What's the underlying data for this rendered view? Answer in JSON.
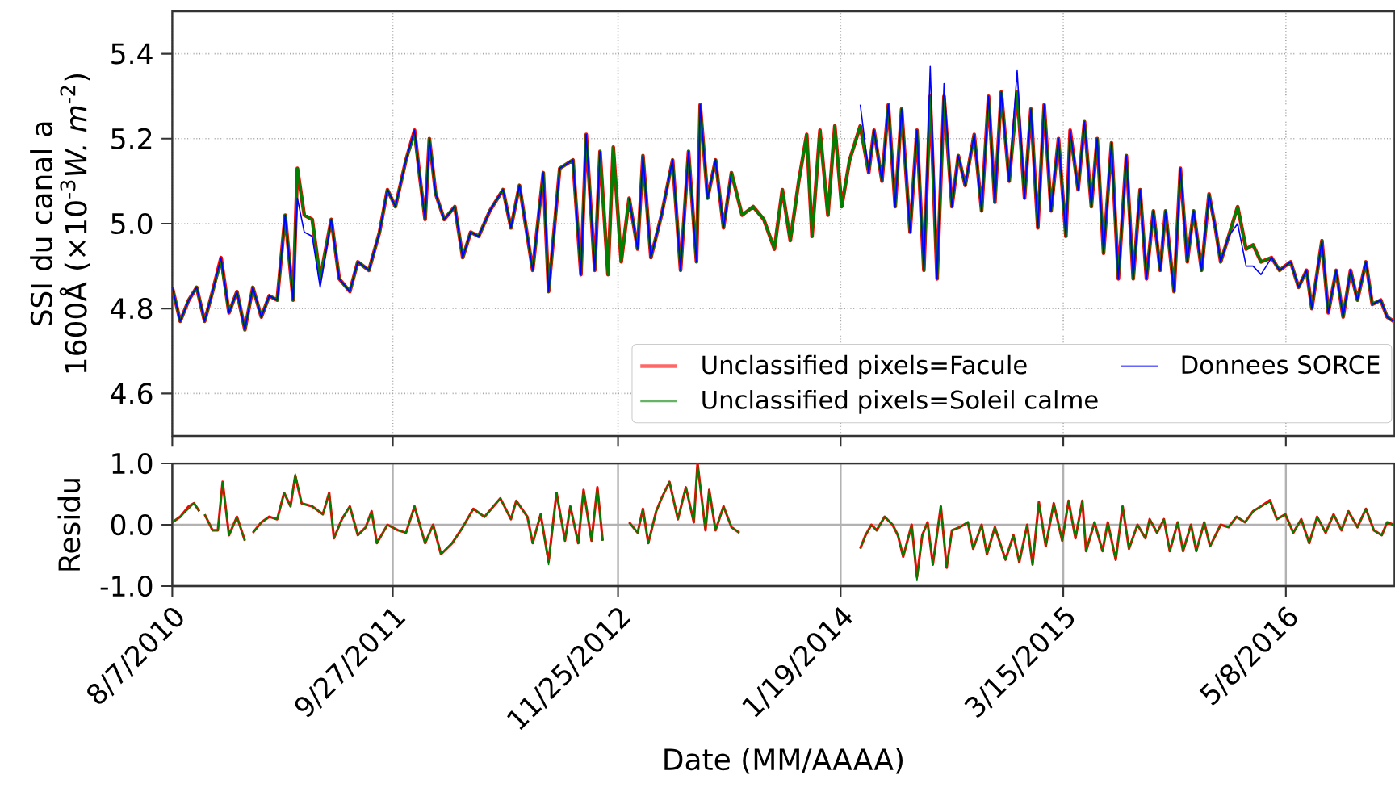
{
  "chart_data": [
    {
      "type": "line",
      "ylabel": "SSI du canal a 1600Å (×10$^{-3}$*W. m*$^{-2}$)",
      "xlim": [
        "2010-08-07",
        "2016-11-29"
      ],
      "ylim": [
        4.5,
        5.5
      ],
      "yticks": [
        {
          "value": 4.6,
          "label": "4.6"
        },
        {
          "value": 4.8,
          "label": "4.8"
        },
        {
          "value": 5.0,
          "label": "5.0"
        },
        {
          "value": 5.2,
          "label": "5.2"
        },
        {
          "value": 5.4,
          "label": "5.4"
        }
      ],
      "xticks": [
        {
          "value": "2010-08-07",
          "label": null
        },
        {
          "value": "2011-09-27",
          "label": null
        },
        {
          "value": "2012-11-25",
          "label": null
        },
        {
          "value": "2014-01-19",
          "label": null
        },
        {
          "value": "2015-03-15",
          "label": null
        },
        {
          "value": "2016-05-08",
          "label": null
        }
      ],
      "tick_labels": "y",
      "grid": true,
      "legend": "bottom right",
      "x": [
        "2010-08-07",
        "2010-08-22",
        "2010-09-07",
        "2010-09-22",
        "2010-10-07",
        "2010-10-22",
        "2010-11-07",
        "2010-11-22",
        "2010-12-07",
        "2010-12-22",
        "2011-01-06",
        "2011-01-22",
        "2011-02-06",
        "2011-02-21",
        "2011-03-08",
        "2011-03-23",
        "2011-03-31",
        "2011-04-13",
        "2011-04-28",
        "2011-05-13",
        "2011-06-03",
        "2011-06-18",
        "2011-07-08",
        "2011-07-23",
        "2011-08-13",
        "2011-09-02",
        "2011-09-17",
        "2011-10-02",
        "2011-10-22",
        "2011-11-07",
        "2011-11-17",
        "2011-11-27",
        "2011-12-05",
        "2011-12-17",
        "2012-01-02",
        "2012-01-22",
        "2012-02-06",
        "2012-02-21",
        "2012-03-07",
        "2012-03-28",
        "2012-04-22",
        "2012-05-07",
        "2012-05-23",
        "2012-06-17",
        "2012-07-07",
        "2012-07-17",
        "2012-08-07",
        "2012-09-01",
        "2012-09-16",
        "2012-09-26",
        "2012-10-12",
        "2012-10-22",
        "2012-11-06",
        "2012-11-16",
        "2012-12-01",
        "2012-12-16",
        "2013-01-01",
        "2013-01-11",
        "2013-01-26",
        "2013-02-15",
        "2013-03-08",
        "2013-03-23",
        "2013-04-07",
        "2013-04-22",
        "2013-04-29",
        "2013-05-13",
        "2013-05-28",
        "2013-06-12",
        "2013-06-27",
        "2013-07-17",
        "2013-08-07",
        "2013-08-27",
        "2013-09-16",
        "2013-10-01",
        "2013-10-16",
        "2013-11-01",
        "2013-11-16",
        "2013-11-26",
        "2013-12-11",
        "2013-12-26",
        "2014-01-08",
        "2014-01-21",
        "2014-02-05",
        "2014-02-25",
        "2014-03-13",
        "2014-03-23",
        "2014-04-07",
        "2014-04-19",
        "2014-05-02",
        "2014-05-14",
        "2014-05-30",
        "2014-06-12",
        "2014-06-25",
        "2014-07-07",
        "2014-07-20",
        "2014-08-02",
        "2014-08-17",
        "2014-08-29",
        "2014-09-11",
        "2014-09-28",
        "2014-10-12",
        "2014-10-25",
        "2014-11-06",
        "2014-11-18",
        "2014-12-03",
        "2014-12-18",
        "2015-01-01",
        "2015-01-13",
        "2015-01-26",
        "2015-02-07",
        "2015-02-20",
        "2015-03-06",
        "2015-03-20",
        "2015-03-28",
        "2015-04-12",
        "2015-04-24",
        "2015-05-07",
        "2015-05-18",
        "2015-05-30",
        "2015-06-14",
        "2015-06-27",
        "2015-07-12",
        "2015-07-25",
        "2015-08-07",
        "2015-08-19",
        "2015-09-01",
        "2015-09-14",
        "2015-09-24",
        "2015-10-10",
        "2015-10-22",
        "2015-11-04",
        "2015-11-16",
        "2015-12-01",
        "2015-12-15",
        "2015-12-27",
        "2016-01-06",
        "2016-01-21",
        "2016-02-07",
        "2016-02-23",
        "2016-03-07",
        "2016-03-22",
        "2016-04-11",
        "2016-04-26",
        "2016-05-17",
        "2016-06-01",
        "2016-06-16",
        "2016-06-26",
        "2016-07-15",
        "2016-07-27",
        "2016-08-11",
        "2016-08-24",
        "2016-09-07",
        "2016-09-20",
        "2016-10-06",
        "2016-10-18",
        "2016-11-03",
        "2016-11-15",
        "2016-11-27"
      ],
      "series": [
        {
          "name": "Unclassified pixels=Facule",
          "color": "#ff0000",
          "values": [
            4.85,
            4.77,
            4.82,
            4.85,
            4.77,
            4.84,
            4.92,
            4.79,
            4.84,
            4.75,
            4.85,
            4.78,
            4.83,
            4.82,
            5.02,
            4.82,
            5.13,
            5.02,
            5.01,
            4.87,
            5.01,
            4.87,
            4.84,
            4.91,
            4.89,
            4.98,
            5.08,
            5.04,
            5.15,
            5.22,
            5.11,
            5.01,
            5.2,
            5.07,
            5.01,
            5.04,
            4.92,
            4.98,
            4.97,
            5.03,
            5.08,
            4.99,
            5.09,
            4.89,
            5.12,
            4.84,
            5.13,
            5.15,
            4.88,
            5.21,
            4.89,
            5.17,
            4.88,
            5.18,
            4.91,
            5.06,
            4.94,
            5.16,
            4.92,
            5.02,
            5.15,
            4.89,
            5.17,
            4.91,
            5.28,
            5.06,
            5.15,
            4.99,
            5.12,
            5.02,
            5.04,
            5.01,
            4.94,
            5.08,
            4.96,
            5.1,
            5.21,
            4.97,
            5.22,
            5.02,
            5.23,
            5.04,
            5.15,
            5.23,
            5.12,
            5.22,
            5.1,
            5.28,
            5.04,
            5.27,
            4.98,
            5.22,
            4.89,
            5.3,
            4.87,
            5.3,
            5.04,
            5.16,
            5.09,
            5.21,
            5.03,
            5.3,
            5.05,
            5.31,
            5.1,
            5.31,
            5.06,
            5.27,
            4.99,
            5.28,
            5.03,
            5.2,
            4.97,
            5.22,
            5.08,
            5.24,
            5.04,
            5.2,
            4.93,
            5.19,
            4.87,
            5.16,
            4.87,
            5.08,
            4.87,
            5.03,
            4.89,
            5.03,
            4.84,
            5.13,
            4.91,
            5.03,
            4.89,
            5.07,
            4.99,
            4.91,
            4.97,
            5.04,
            4.94,
            4.95,
            4.91,
            4.92,
            4.89,
            4.91,
            4.85,
            4.89,
            4.8,
            4.96,
            4.79,
            4.89,
            4.78,
            4.89,
            4.82,
            4.91,
            4.81,
            4.82,
            4.78,
            4.77
          ]
        },
        {
          "name": "Unclassified pixels=Soleil calme",
          "color": "#008000",
          "values": [
            4.85,
            4.77,
            4.82,
            4.85,
            4.77,
            4.84,
            4.91,
            4.79,
            4.84,
            4.75,
            4.85,
            4.78,
            4.83,
            4.82,
            5.02,
            4.82,
            5.13,
            5.02,
            5.01,
            4.87,
            5.01,
            4.87,
            4.84,
            4.91,
            4.89,
            4.98,
            5.08,
            5.04,
            5.15,
            5.21,
            5.11,
            5.01,
            5.2,
            5.07,
            5.01,
            5.04,
            4.92,
            4.98,
            4.97,
            5.03,
            5.08,
            4.99,
            5.09,
            4.89,
            5.12,
            4.84,
            5.13,
            5.15,
            4.88,
            5.21,
            4.89,
            5.17,
            4.88,
            5.18,
            4.91,
            5.06,
            4.94,
            5.16,
            4.92,
            5.02,
            5.15,
            4.89,
            5.17,
            4.91,
            5.28,
            5.06,
            5.15,
            4.99,
            5.12,
            5.02,
            5.04,
            5.01,
            4.94,
            5.08,
            4.96,
            5.1,
            5.21,
            4.97,
            5.22,
            5.02,
            5.23,
            5.04,
            5.15,
            5.23,
            5.12,
            5.22,
            5.1,
            5.28,
            5.04,
            5.27,
            4.98,
            5.22,
            4.89,
            5.3,
            4.87,
            5.3,
            5.04,
            5.16,
            5.09,
            5.21,
            5.03,
            5.3,
            5.05,
            5.31,
            5.1,
            5.31,
            5.06,
            5.27,
            4.99,
            5.28,
            5.03,
            5.2,
            4.97,
            5.21,
            5.08,
            5.24,
            5.04,
            5.2,
            4.93,
            5.19,
            4.87,
            5.16,
            4.87,
            5.08,
            4.87,
            5.03,
            4.89,
            5.03,
            4.84,
            5.13,
            4.91,
            5.03,
            4.89,
            5.07,
            4.99,
            4.91,
            4.97,
            5.04,
            4.94,
            4.95,
            4.91,
            4.92,
            4.89,
            4.91,
            4.85,
            4.89,
            4.8,
            4.96,
            4.79,
            4.89,
            4.78,
            4.89,
            4.82,
            4.91,
            4.81,
            4.82,
            4.78,
            4.77
          ]
        },
        {
          "name": "Donnees SORCE",
          "color": "#0000ff",
          "values": [
            4.85,
            4.77,
            4.82,
            4.85,
            4.77,
            4.84,
            4.92,
            4.79,
            4.84,
            4.75,
            4.85,
            4.78,
            4.83,
            4.82,
            5.02,
            4.82,
            5.06,
            4.98,
            4.97,
            4.85,
            5.01,
            4.87,
            4.84,
            4.91,
            4.89,
            4.98,
            5.08,
            5.04,
            5.15,
            5.22,
            5.11,
            5.01,
            5.2,
            5.07,
            5.01,
            5.04,
            4.92,
            4.98,
            4.97,
            5.03,
            5.08,
            4.99,
            5.09,
            4.89,
            5.12,
            4.84,
            5.13,
            5.15,
            4.88,
            5.21,
            4.89,
            5.17,
            null,
            null,
            null,
            5.06,
            4.94,
            5.16,
            4.92,
            5.02,
            5.15,
            4.89,
            5.17,
            4.91,
            5.28,
            5.06,
            5.15,
            4.99,
            5.12,
            null,
            null,
            null,
            null,
            null,
            null,
            null,
            null,
            null,
            null,
            null,
            null,
            null,
            null,
            5.28,
            5.12,
            5.22,
            5.1,
            5.28,
            5.04,
            5.27,
            4.98,
            5.22,
            4.89,
            5.37,
            4.87,
            5.33,
            5.04,
            5.16,
            5.09,
            5.21,
            5.03,
            5.3,
            5.05,
            5.31,
            5.1,
            5.36,
            5.06,
            5.27,
            4.99,
            5.28,
            5.03,
            5.2,
            4.97,
            5.22,
            5.08,
            5.24,
            5.04,
            5.2,
            4.93,
            5.19,
            4.87,
            5.16,
            4.87,
            5.08,
            4.87,
            5.03,
            4.89,
            5.03,
            4.84,
            5.13,
            4.91,
            5.03,
            4.89,
            5.07,
            4.99,
            4.91,
            4.97,
            5.0,
            4.9,
            4.9,
            4.88,
            4.92,
            4.89,
            4.91,
            4.85,
            4.89,
            4.8,
            4.96,
            4.79,
            4.89,
            4.78,
            4.89,
            4.82,
            4.91,
            4.81,
            4.82,
            4.78,
            4.77
          ]
        }
      ]
    },
    {
      "type": "line",
      "ylabel": "Residu",
      "xlabel": "Date (MM/AAAA)",
      "xlim": [
        "2010-08-07",
        "2016-11-29"
      ],
      "ylim": [
        -1.0,
        1.0
      ],
      "yticks": [
        {
          "value": -1.0,
          "label": "-1.0"
        },
        {
          "value": 0.0,
          "label": "0.0"
        },
        {
          "value": 1.0,
          "label": "1.0"
        }
      ],
      "xticks": [
        {
          "value": "2010-08-07",
          "label": "8/7/2010"
        },
        {
          "value": "2011-09-27",
          "label": "9/27/2011"
        },
        {
          "value": "2012-11-25",
          "label": "11/25/2012"
        },
        {
          "value": "2014-01-19",
          "label": "1/19/2014"
        },
        {
          "value": "2015-03-15",
          "label": "3/15/2015"
        },
        {
          "value": "2016-05-08",
          "label": "5/8/2016"
        }
      ],
      "grid": true,
      "x": [
        "2010-08-07",
        "2010-08-22",
        "2010-09-07",
        "2010-09-17",
        "2010-09-27",
        "2010-10-02",
        "2010-10-07",
        "2010-10-22",
        "2010-11-01",
        "2010-11-10",
        "2010-11-22",
        "2010-12-07",
        "2010-12-22",
        "2010-12-30",
        "2011-01-06",
        "2011-01-22",
        "2011-02-06",
        "2011-02-21",
        "2011-03-06",
        "2011-03-18",
        "2011-03-27",
        "2011-04-08",
        "2011-04-28",
        "2011-05-18",
        "2011-05-30",
        "2011-06-08",
        "2011-06-23",
        "2011-07-08",
        "2011-07-23",
        "2011-08-07",
        "2011-08-18",
        "2011-08-28",
        "2011-09-17",
        "2011-10-07",
        "2011-10-22",
        "2011-11-07",
        "2011-11-27",
        "2011-12-12",
        "2011-12-27",
        "2012-01-17",
        "2012-02-06",
        "2012-02-26",
        "2012-03-18",
        "2012-04-17",
        "2012-05-07",
        "2012-05-17",
        "2012-06-07",
        "2012-06-17",
        "2012-07-02",
        "2012-07-17",
        "2012-08-01",
        "2012-08-17",
        "2012-08-27",
        "2012-09-11",
        "2012-09-21",
        "2012-10-06",
        "2012-10-17",
        "2012-10-27",
        "2012-11-20",
        "2012-12-16",
        "2013-01-01",
        "2013-01-11",
        "2013-01-21",
        "2013-02-05",
        "2013-02-15",
        "2013-03-02",
        "2013-03-18",
        "2013-04-02",
        "2013-04-17",
        "2013-04-24",
        "2013-05-09",
        "2013-05-16",
        "2013-05-28",
        "2013-06-12",
        "2013-06-27",
        "2013-07-12",
        "2013-11-01",
        "2014-02-25",
        "2014-03-07",
        "2014-03-18",
        "2014-03-28",
        "2014-04-12",
        "2014-04-27",
        "2014-05-07",
        "2014-05-17",
        "2014-06-02",
        "2014-06-12",
        "2014-06-22",
        "2014-07-02",
        "2014-07-12",
        "2014-07-27",
        "2014-08-07",
        "2014-08-17",
        "2014-09-01",
        "2014-09-16",
        "2014-09-26",
        "2014-10-12",
        "2014-10-22",
        "2014-11-06",
        "2014-11-26",
        "2014-12-11",
        "2014-12-22",
        "2015-01-06",
        "2015-01-16",
        "2015-01-28",
        "2015-02-10",
        "2015-02-25",
        "2015-03-13",
        "2015-03-25",
        "2015-04-07",
        "2015-04-20",
        "2015-04-27",
        "2015-05-13",
        "2015-05-28",
        "2015-06-07",
        "2015-06-22",
        "2015-07-05",
        "2015-07-17",
        "2015-08-02",
        "2015-08-17",
        "2015-08-25",
        "2015-09-08",
        "2015-09-21",
        "2015-10-02",
        "2015-10-17",
        "2015-10-27",
        "2015-11-11",
        "2015-11-21",
        "2015-12-06",
        "2015-12-17",
        "2016-01-06",
        "2016-01-21",
        "2016-02-05",
        "2016-02-21",
        "2016-03-07",
        "2016-03-22",
        "2016-04-08",
        "2016-04-21",
        "2016-05-07",
        "2016-05-22",
        "2016-06-06",
        "2016-06-21",
        "2016-07-06",
        "2016-07-22",
        "2016-08-06",
        "2016-08-21",
        "2016-09-03",
        "2016-09-20",
        "2016-10-06",
        "2016-10-21",
        "2016-11-05",
        "2016-11-15",
        "2016-11-27"
      ],
      "series": [
        {
          "color": "#ff0000",
          "values": [
            0.04,
            0.13,
            0.3,
            0.35,
            0.22,
            null,
            0.17,
            -0.09,
            -0.09,
            0.7,
            -0.17,
            0.13,
            -0.26,
            null,
            -0.13,
            0.04,
            0.13,
            0.09,
            0.52,
            0.3,
            0.8,
            0.35,
            0.3,
            0.17,
            0.52,
            -0.22,
            0.09,
            0.3,
            -0.17,
            -0.04,
            0.22,
            -0.3,
            0.0,
            -0.09,
            -0.13,
            0.3,
            -0.3,
            0.0,
            -0.48,
            -0.3,
            -0.04,
            0.26,
            0.13,
            0.43,
            0.09,
            0.39,
            0.13,
            -0.3,
            0.17,
            -0.6,
            0.52,
            -0.26,
            0.3,
            -0.3,
            0.57,
            -0.26,
            0.61,
            -0.26,
            null,
            0.04,
            -0.13,
            0.26,
            -0.3,
            0.22,
            0.43,
            0.7,
            0.09,
            0.61,
            0.04,
            1.0,
            -0.09,
            0.57,
            -0.09,
            0.3,
            -0.04,
            -0.13,
            null,
            -0.39,
            -0.17,
            0.0,
            -0.09,
            0.13,
            0.0,
            -0.17,
            -0.52,
            0.0,
            -0.85,
            -0.17,
            0.04,
            -0.65,
            0.3,
            -0.7,
            -0.09,
            -0.04,
            0.04,
            -0.39,
            0.0,
            -0.48,
            -0.04,
            -0.57,
            -0.17,
            -0.61,
            0.0,
            -0.65,
            0.37,
            -0.35,
            0.35,
            -0.26,
            0.39,
            -0.22,
            0.39,
            -0.43,
            0.04,
            -0.43,
            0.04,
            -0.57,
            0.3,
            -0.39,
            0.0,
            -0.22,
            0.09,
            -0.13,
            0.09,
            -0.43,
            0.04,
            -0.43,
            0.0,
            -0.43,
            0.04,
            -0.35,
            0.0,
            -0.04,
            0.13,
            0.04,
            0.22,
            0.3,
            0.4,
            0.09,
            0.17,
            -0.13,
            0.09,
            -0.3,
            0.13,
            -0.13,
            0.17,
            -0.09,
            0.22,
            -0.04,
            0.26,
            -0.09,
            -0.17,
            0.04,
            0.0
          ]
        },
        {
          "color": "#008000",
          "values": [
            0.04,
            0.13,
            0.26,
            0.35,
            0.22,
            null,
            0.17,
            -0.09,
            -0.09,
            0.7,
            -0.17,
            0.13,
            -0.26,
            null,
            -0.13,
            0.04,
            0.13,
            0.09,
            0.52,
            0.3,
            0.83,
            0.35,
            0.3,
            0.17,
            0.52,
            -0.22,
            0.09,
            0.3,
            -0.17,
            -0.04,
            0.22,
            -0.3,
            0.0,
            -0.09,
            -0.13,
            0.3,
            -0.3,
            0.0,
            -0.48,
            -0.3,
            -0.04,
            0.26,
            0.13,
            0.43,
            0.09,
            0.39,
            0.13,
            -0.3,
            0.17,
            -0.65,
            0.52,
            -0.26,
            0.3,
            -0.3,
            0.57,
            -0.26,
            0.61,
            -0.26,
            null,
            0.04,
            -0.13,
            0.26,
            -0.3,
            0.22,
            0.43,
            0.7,
            0.09,
            0.61,
            0.04,
            1.0,
            -0.09,
            0.57,
            -0.09,
            0.3,
            -0.04,
            -0.13,
            null,
            -0.39,
            -0.17,
            0.0,
            -0.09,
            0.13,
            0.0,
            -0.17,
            -0.52,
            0.0,
            -0.91,
            -0.17,
            0.04,
            -0.65,
            0.3,
            -0.7,
            -0.09,
            -0.04,
            0.04,
            -0.39,
            0.0,
            -0.48,
            -0.04,
            -0.57,
            -0.17,
            -0.61,
            0.0,
            -0.65,
            0.35,
            -0.35,
            0.35,
            -0.26,
            0.39,
            -0.22,
            0.39,
            -0.43,
            0.04,
            -0.43,
            0.04,
            -0.57,
            0.3,
            -0.39,
            0.0,
            -0.22,
            0.09,
            -0.13,
            0.09,
            -0.43,
            0.04,
            -0.43,
            0.0,
            -0.43,
            0.04,
            -0.35,
            0.0,
            -0.04,
            0.13,
            0.04,
            0.22,
            0.3,
            0.37,
            0.09,
            0.17,
            -0.13,
            0.09,
            -0.3,
            0.13,
            -0.13,
            0.17,
            -0.09,
            0.22,
            -0.04,
            0.26,
            -0.09,
            -0.17,
            0.04,
            0.0
          ]
        }
      ]
    }
  ]
}
